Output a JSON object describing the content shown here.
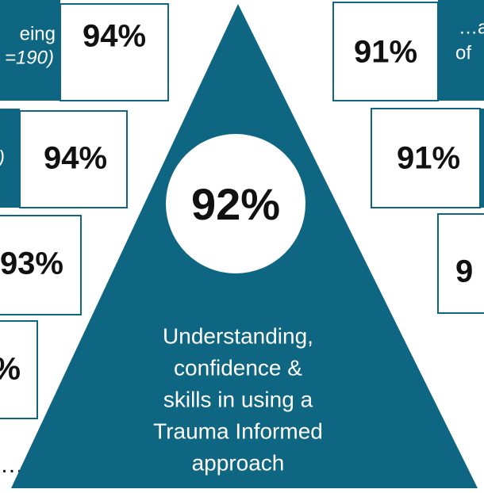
{
  "center": {
    "value": "92%",
    "caption": [
      "Understanding,",
      "confidence &",
      "skills in using a",
      "Trauma Informed",
      "approach"
    ]
  },
  "left": [
    {
      "label": [
        "eing",
        "=190)"
      ],
      "value": "94%"
    },
    {
      "label": [
        ")"
      ],
      "value": "94%"
    },
    {
      "value": "93%"
    },
    {
      "value": "%"
    }
  ],
  "left_more": "…",
  "right": [
    {
      "label": [
        "…a",
        "of"
      ],
      "value": "91%"
    },
    {
      "value": "91%"
    },
    {
      "value": "9"
    }
  ]
}
